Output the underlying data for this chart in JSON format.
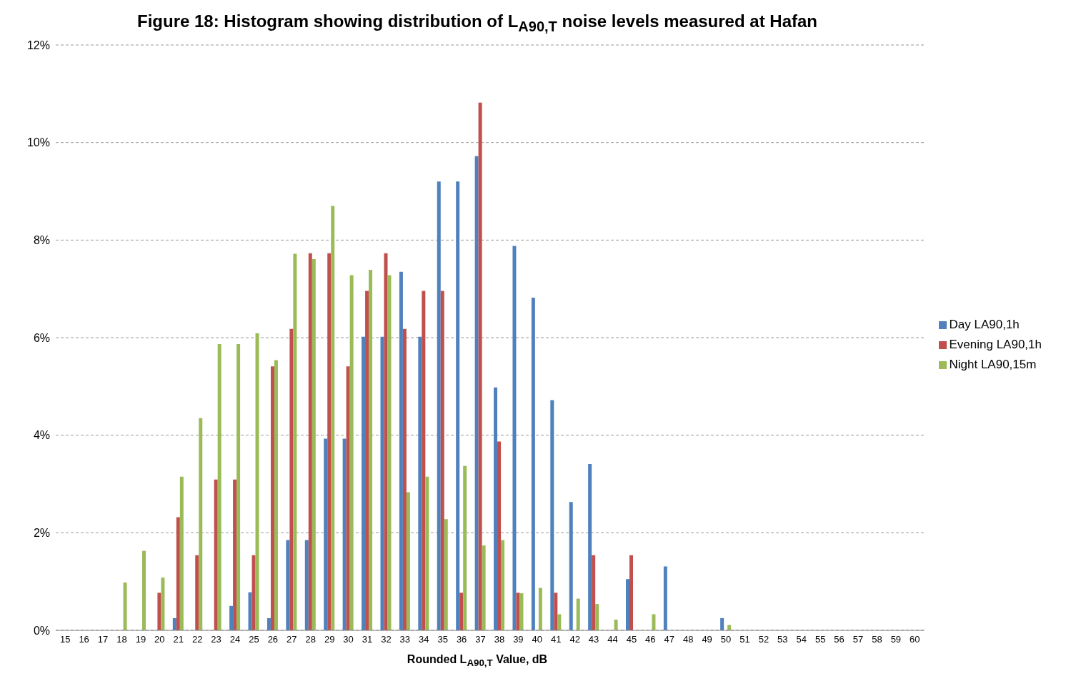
{
  "chart_data": {
    "type": "bar",
    "title": "Figure 18: Histogram showing distribution of L$_{A90,T}$ noise levels measured at Hafan",
    "xlabel": "Rounded L$_{A90,T}$ Value, dB",
    "categories": [
      "15",
      "16",
      "17",
      "18",
      "19",
      "20",
      "21",
      "22",
      "23",
      "24",
      "25",
      "26",
      "27",
      "28",
      "29",
      "30",
      "31",
      "32",
      "33",
      "34",
      "35",
      "36",
      "37",
      "38",
      "39",
      "40",
      "41",
      "42",
      "43",
      "44",
      "45",
      "46",
      "47",
      "48",
      "49",
      "50",
      "51",
      "52",
      "53",
      "54",
      "55",
      "56",
      "57",
      "58",
      "59",
      "60"
    ],
    "series": [
      {
        "name": "Day LA90,1h",
        "color": "#4f81bd",
        "values": [
          0,
          0,
          0,
          0,
          0,
          0,
          0.25,
          0,
          0,
          0.5,
          0.78,
          0.25,
          1.85,
          1.85,
          3.93,
          3.93,
          6.02,
          6.02,
          7.35,
          6.02,
          9.2,
          9.2,
          9.72,
          4.98,
          7.88,
          6.82,
          4.72,
          2.63,
          3.41,
          0,
          1.05,
          0,
          1.31,
          0,
          0,
          0.25,
          0,
          0,
          0,
          0,
          0,
          0,
          0,
          0,
          0,
          0
        ]
      },
      {
        "name": "Evening LA90,1h",
        "color": "#c0504d",
        "values": [
          0,
          0,
          0,
          0,
          0,
          0.77,
          2.32,
          1.54,
          3.09,
          3.09,
          1.54,
          5.41,
          6.18,
          7.73,
          7.73,
          5.41,
          6.96,
          7.73,
          6.18,
          6.96,
          6.96,
          0.77,
          10.82,
          3.87,
          0.77,
          0,
          0.77,
          0,
          1.54,
          0,
          1.54,
          0,
          0,
          0,
          0,
          0,
          0,
          0,
          0,
          0,
          0,
          0,
          0,
          0,
          0,
          0
        ]
      },
      {
        "name": "Night LA90,15m",
        "color": "#9bbb59",
        "values": [
          0,
          0,
          0,
          0.98,
          1.63,
          1.08,
          3.15,
          4.35,
          5.87,
          5.87,
          6.09,
          5.54,
          7.72,
          7.61,
          8.7,
          7.28,
          7.39,
          7.28,
          2.83,
          3.15,
          2.28,
          3.37,
          1.74,
          1.85,
          0.76,
          0.87,
          0.33,
          0.65,
          0.54,
          0.22,
          0,
          0.33,
          0,
          0,
          0,
          0.11,
          0,
          0,
          0,
          0,
          0,
          0,
          0,
          0,
          0,
          0
        ]
      }
    ],
    "ylim": [
      0,
      12
    ],
    "yticks": [
      {
        "value": 0,
        "label": "0%"
      },
      {
        "value": 2,
        "label": "2%"
      },
      {
        "value": 4,
        "label": "4%"
      },
      {
        "value": 6,
        "label": "6%"
      },
      {
        "value": 8,
        "label": "8%"
      },
      {
        "value": 10,
        "label": "10%"
      },
      {
        "value": 12,
        "label": "12%"
      }
    ],
    "grid": "y",
    "legend": "right"
  }
}
